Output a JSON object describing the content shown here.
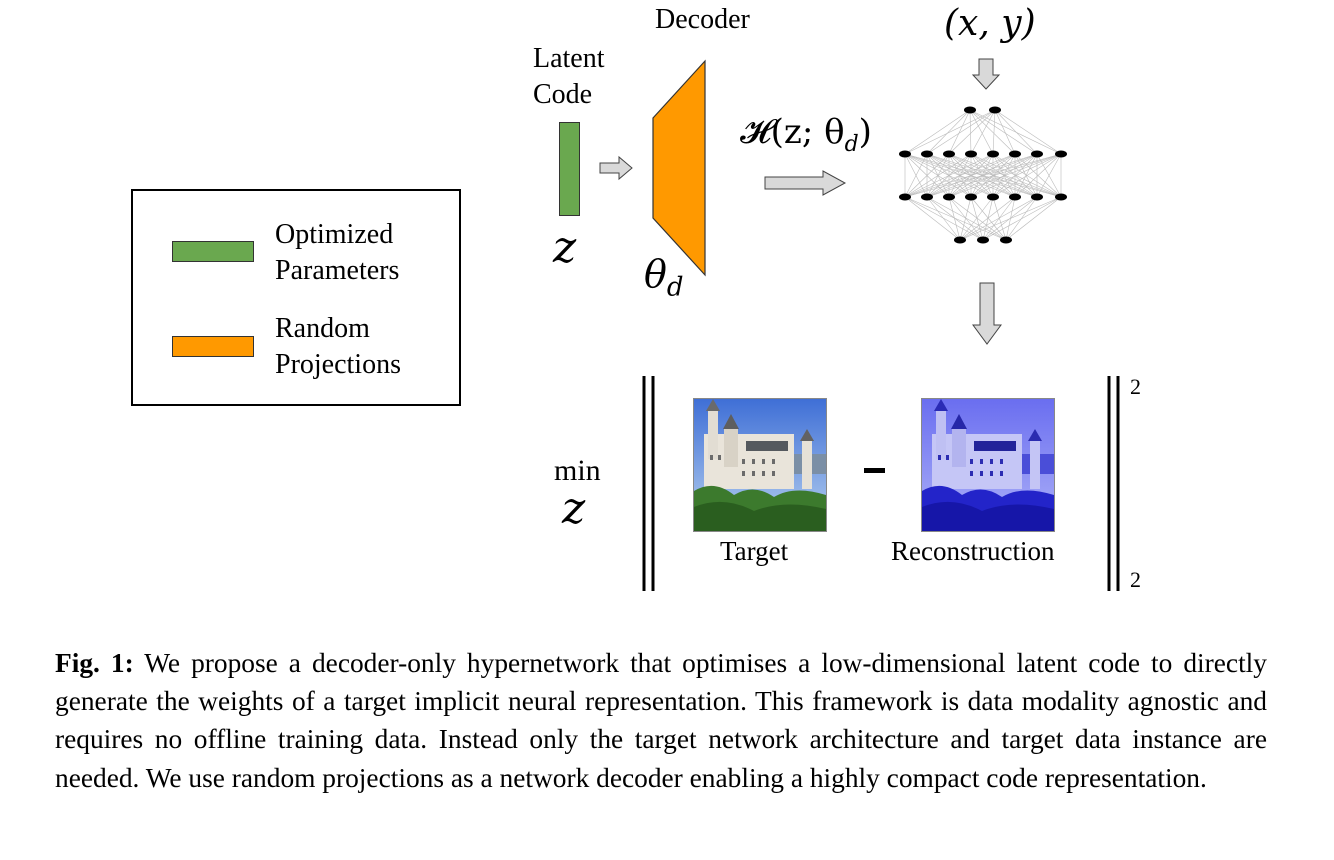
{
  "legend": {
    "items": [
      {
        "label_line1": "Optimized",
        "label_line2": "Parameters",
        "color": "#6aa84f"
      },
      {
        "label_line1": "Random",
        "label_line2": "Projections",
        "color": "#ff9900"
      }
    ]
  },
  "diagram": {
    "latent_label_line1": "Latent",
    "latent_label_line2": "Code",
    "latent_symbol": "z",
    "decoder_label": "Decoder",
    "decoder_symbol": "θ",
    "decoder_subscript": "d",
    "hyper_label": "𝓗(z; θ",
    "hyper_subscript": "d",
    "hyper_close": ")",
    "input_label": "(x, y)",
    "min_label": "min",
    "min_symbol": "z",
    "target_label": "Target",
    "reconstruction_label": "Reconstruction",
    "minus": "-",
    "norm_sup": "2",
    "norm_sub": "2"
  },
  "colors": {
    "latent": "#6aa84f",
    "decoder": "#ff9900",
    "arrow_fill": "#d9d9d9"
  },
  "caption": {
    "prefix": "Fig. 1:",
    "text": "We propose a decoder-only hypernetwork that optimises a low-dimensional latent code to directly generate the weights of a target implicit neural representation. This framework is data modality agnostic and requires no offline training data. Instead only the target network architecture and target data instance are needed. We use random projections as a network decoder enabling a highly compact code representation."
  }
}
